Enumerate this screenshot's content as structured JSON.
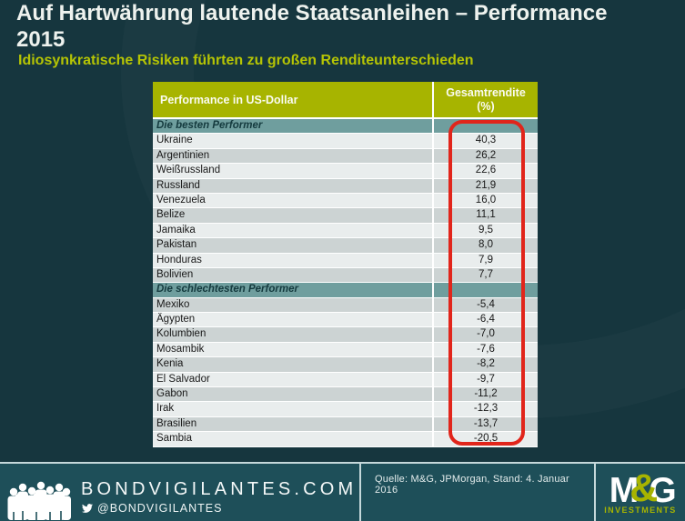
{
  "colors": {
    "background": "#16363e",
    "footer_background": "#1e4f59",
    "table_header_olive": "#a7b400",
    "section_row_teal": "#6f9e9e",
    "row_light": "#e9eded",
    "row_dark": "#ccd3d3",
    "subtitle_green": "#b5c404",
    "highlight_red": "#e1251b",
    "title_white": "#eef2ee"
  },
  "header": {
    "title_line1": "Auf Hartwährung lautende Staatsanleihen – Performance",
    "title_line2": "2015",
    "subtitle": "Idiosynkratische Risiken führten zu großen Renditeunterschieden"
  },
  "table": {
    "col1_header": "Performance in US-Dollar",
    "col2_header": "Gesamtrendite\n(%)",
    "sections": [
      {
        "label": "Die besten Performer",
        "rows": [
          {
            "country": "Ukraine",
            "value": "40,3"
          },
          {
            "country": "Argentinien",
            "value": "26,2"
          },
          {
            "country": "Weißrussland",
            "value": "22,6"
          },
          {
            "country": "Russland",
            "value": "21,9"
          },
          {
            "country": "Venezuela",
            "value": "16,0"
          },
          {
            "country": "Belize",
            "value": "11,1"
          },
          {
            "country": "Jamaika",
            "value": "9,5"
          },
          {
            "country": "Pakistan",
            "value": "8,0"
          },
          {
            "country": "Honduras",
            "value": "7,9"
          },
          {
            "country": "Bolivien",
            "value": "7,7"
          }
        ]
      },
      {
        "label": "Die schlechtesten Performer",
        "rows": [
          {
            "country": "Mexiko",
            "value": "-5,4"
          },
          {
            "country": "Ägypten",
            "value": "-6,4"
          },
          {
            "country": "Kolumbien",
            "value": "-7,0"
          },
          {
            "country": "Mosambik",
            "value": "-7,6"
          },
          {
            "country": "Kenia",
            "value": "-8,2"
          },
          {
            "country": "El Salvador",
            "value": "-9,7"
          },
          {
            "country": "Gabon",
            "value": "-11,2"
          },
          {
            "country": "Irak",
            "value": "-12,3"
          },
          {
            "country": "Brasilien",
            "value": "-13,7"
          },
          {
            "country": "Sambia",
            "value": "-20,5"
          }
        ]
      }
    ]
  },
  "chart_data": {
    "type": "table",
    "title": "Auf Hartwährung lautende Staatsanleihen – Performance 2015",
    "subtitle": "Idiosynkratische Risiken führten zu großen Renditeunterschieden",
    "columns": [
      "Performance in US-Dollar",
      "Gesamtrendite (%)"
    ],
    "groups": [
      {
        "label": "Die besten Performer",
        "rows": [
          [
            "Ukraine",
            40.3
          ],
          [
            "Argentinien",
            26.2
          ],
          [
            "Weißrussland",
            22.6
          ],
          [
            "Russland",
            21.9
          ],
          [
            "Venezuela",
            16.0
          ],
          [
            "Belize",
            11.1
          ],
          [
            "Jamaika",
            9.5
          ],
          [
            "Pakistan",
            8.0
          ],
          [
            "Honduras",
            7.9
          ],
          [
            "Bolivien",
            7.7
          ]
        ]
      },
      {
        "label": "Die schlechtesten Performer",
        "rows": [
          [
            "Mexiko",
            -5.4
          ],
          [
            "Ägypten",
            -6.4
          ],
          [
            "Kolumbien",
            -7.0
          ],
          [
            "Mosambik",
            -7.6
          ],
          [
            "Kenia",
            -8.2
          ],
          [
            "El Salvador",
            -9.7
          ],
          [
            "Gabon",
            -11.2
          ],
          [
            "Irak",
            -12.3
          ],
          [
            "Brasilien",
            -13.7
          ],
          [
            "Sambia",
            -20.5
          ]
        ]
      }
    ],
    "annotation": "red rounded rectangle highlighting the Gesamtrendite (%) value column"
  },
  "footer": {
    "site": "BONDVIGILANTES.COM",
    "twitter_handle": "@BONDVIGILANTES",
    "source": "Quelle: M&G, JPMorgan,  Stand: 4. Januar 2016",
    "mg_logo": {
      "m": "M",
      "amp": "&",
      "g": "G",
      "tagline": "INVESTMENTS"
    }
  }
}
